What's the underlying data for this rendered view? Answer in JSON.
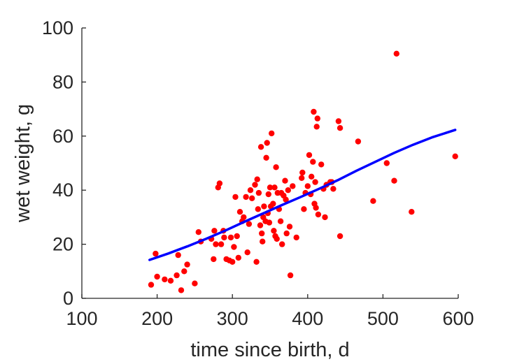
{
  "chart_data": {
    "type": "scatter",
    "title": "",
    "xlabel": "time since birth, d",
    "ylabel": "wet weight, g",
    "xlim": [
      100,
      600
    ],
    "ylim": [
      0,
      100
    ],
    "xticks": [
      100,
      200,
      300,
      400,
      500,
      600
    ],
    "yticks": [
      0,
      20,
      40,
      60,
      80,
      100
    ],
    "grid": false,
    "legend": "none",
    "series": [
      {
        "kind": "scatter",
        "color": "#ff0000",
        "points": [
          [
            192,
            5
          ],
          [
            198,
            16.5
          ],
          [
            200,
            8
          ],
          [
            210,
            7
          ],
          [
            218,
            6.5
          ],
          [
            226,
            8.5
          ],
          [
            228,
            16
          ],
          [
            232,
            3
          ],
          [
            236,
            10
          ],
          [
            240,
            12.5
          ],
          [
            250,
            5.5
          ],
          [
            255,
            24.5
          ],
          [
            258,
            21
          ],
          [
            272,
            22
          ],
          [
            275,
            14.5
          ],
          [
            276,
            25
          ],
          [
            278,
            20
          ],
          [
            281,
            41
          ],
          [
            283,
            42.5
          ],
          [
            285,
            20
          ],
          [
            288,
            25
          ],
          [
            289,
            22.5
          ],
          [
            292,
            14.5
          ],
          [
            296,
            14
          ],
          [
            298,
            22.5
          ],
          [
            300,
            13.5
          ],
          [
            302,
            19
          ],
          [
            304,
            37.5
          ],
          [
            306,
            23
          ],
          [
            308,
            15
          ],
          [
            310,
            32
          ],
          [
            313,
            28.5
          ],
          [
            315,
            30
          ],
          [
            318,
            37.5
          ],
          [
            320,
            17
          ],
          [
            322,
            27.5
          ],
          [
            324,
            40
          ],
          [
            326,
            37
          ],
          [
            330,
            42
          ],
          [
            332,
            13.5
          ],
          [
            333,
            44
          ],
          [
            334,
            33
          ],
          [
            335,
            39
          ],
          [
            337,
            27
          ],
          [
            338,
            56
          ],
          [
            339,
            24
          ],
          [
            340,
            21
          ],
          [
            341,
            30
          ],
          [
            342,
            34
          ],
          [
            344,
            28.5
          ],
          [
            345,
            52
          ],
          [
            346,
            57.5
          ],
          [
            347,
            31.5
          ],
          [
            348,
            38.5
          ],
          [
            349,
            28
          ],
          [
            350,
            41
          ],
          [
            351,
            34
          ],
          [
            352,
            61
          ],
          [
            354,
            35
          ],
          [
            355,
            25
          ],
          [
            356,
            41
          ],
          [
            357,
            23
          ],
          [
            358,
            48.5
          ],
          [
            359,
            22
          ],
          [
            360,
            39
          ],
          [
            362,
            33
          ],
          [
            364,
            28.5
          ],
          [
            365,
            39
          ],
          [
            366,
            20
          ],
          [
            368,
            38
          ],
          [
            370,
            43.5
          ],
          [
            371,
            36.5
          ],
          [
            372,
            24
          ],
          [
            374,
            40
          ],
          [
            376,
            26.5
          ],
          [
            377,
            8.5
          ],
          [
            380,
            41.5
          ],
          [
            385,
            22.5
          ],
          [
            392,
            44.5
          ],
          [
            393,
            46.5
          ],
          [
            395,
            33
          ],
          [
            397,
            39
          ],
          [
            400,
            41.5
          ],
          [
            402,
            53
          ],
          [
            404,
            38.5
          ],
          [
            405,
            45
          ],
          [
            407,
            50.5
          ],
          [
            408,
            69
          ],
          [
            409,
            35
          ],
          [
            410,
            43
          ],
          [
            411,
            33.5
          ],
          [
            412,
            63.5
          ],
          [
            413,
            66.5
          ],
          [
            414,
            31
          ],
          [
            418,
            49.5
          ],
          [
            421,
            40.5
          ],
          [
            423,
            30
          ],
          [
            425,
            42
          ],
          [
            430,
            43
          ],
          [
            432,
            43
          ],
          [
            434,
            40.5
          ],
          [
            441,
            65.5
          ],
          [
            443,
            63
          ],
          [
            443,
            23
          ],
          [
            467,
            58
          ],
          [
            487,
            36
          ],
          [
            505,
            50
          ],
          [
            515,
            43.5
          ],
          [
            518,
            90.5
          ],
          [
            538,
            32
          ],
          [
            596,
            52.5
          ]
        ]
      },
      {
        "kind": "line",
        "color": "#0000ff",
        "points": [
          [
            190,
            14.2
          ],
          [
            215,
            16.6
          ],
          [
            240,
            19.2
          ],
          [
            265,
            22
          ],
          [
            290,
            25
          ],
          [
            315,
            28.2
          ],
          [
            340,
            31.3
          ],
          [
            365,
            34.4
          ],
          [
            390,
            37.4
          ],
          [
            415,
            40.5
          ],
          [
            440,
            43.7
          ],
          [
            465,
            47.2
          ],
          [
            490,
            50.5
          ],
          [
            515,
            53.8
          ],
          [
            540,
            56.8
          ],
          [
            565,
            59.5
          ],
          [
            596,
            62.3
          ]
        ]
      }
    ]
  }
}
